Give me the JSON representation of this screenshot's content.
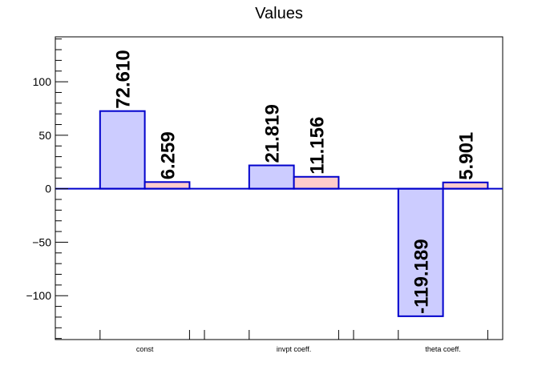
{
  "chart_data": {
    "type": "bar",
    "title": "Values",
    "xlabel": "",
    "ylabel": "",
    "categories": [
      "const",
      "invpt coeff.",
      "theta coeff."
    ],
    "ylim": [
      -141,
      142
    ],
    "yticks": [
      -100,
      -50,
      0,
      50,
      100
    ],
    "ytick_labels": [
      "−100",
      "−50",
      "0",
      "50",
      "100"
    ],
    "grid": false,
    "series": [
      {
        "values": [
          72.61,
          21.819,
          -119.189
        ],
        "labels": [
          "72.610",
          "21.819",
          "-119.189"
        ],
        "fill": "#ccccff",
        "stroke": "#0000cc"
      },
      {
        "values": [
          6.259,
          11.156,
          5.901
        ],
        "labels": [
          "6.259",
          "11.156",
          "5.901"
        ],
        "fill": "#ffcccc",
        "stroke": "#0000cc"
      }
    ]
  }
}
